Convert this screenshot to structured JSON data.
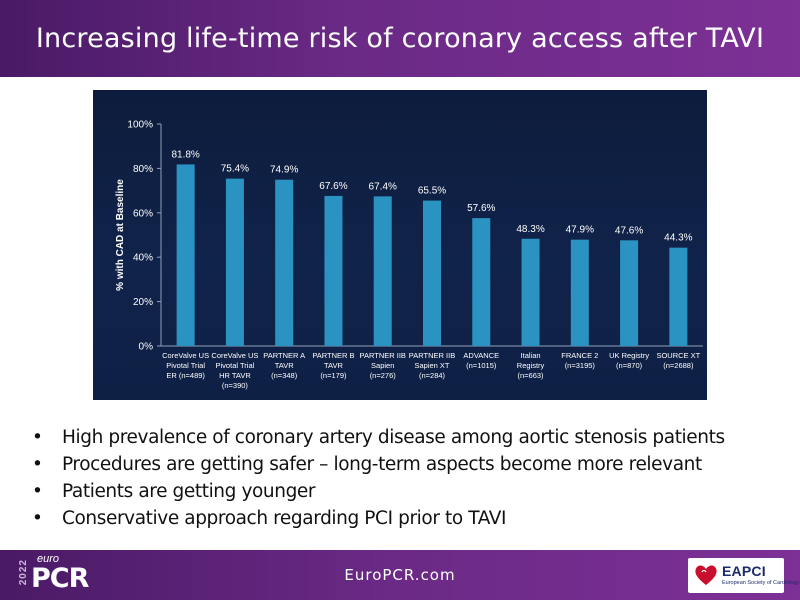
{
  "slide": {
    "title": "Increasing life-time risk of coronary access after TAVI"
  },
  "chart_data": {
    "type": "bar",
    "ylabel": "% with CAD at Baseline",
    "xlabel": "",
    "ylim": [
      0,
      100
    ],
    "yticks": [
      "0%",
      "20%",
      "40%",
      "60%",
      "80%",
      "100%"
    ],
    "categories": [
      [
        "CoreValve US",
        "Pivotal Trial",
        "ER (n=489)"
      ],
      [
        "CoreValve US",
        "Pivotal Trial",
        "HR TAVR",
        "(n=390)"
      ],
      [
        "PARTNER A",
        "TAVR",
        "(n=348)"
      ],
      [
        "PARTNER B",
        "TAVR",
        "(n=179)"
      ],
      [
        "PARTNER IIB",
        "Sapien",
        "(n=276)"
      ],
      [
        "PARTNER IIB",
        "Sapien XT",
        "(n=284)"
      ],
      [
        "ADVANCE",
        "(n=1015)"
      ],
      [
        "Italian",
        "Registry",
        "(n=663)"
      ],
      [
        "FRANCE 2",
        "(n=3195)"
      ],
      [
        "UK Registry",
        "(n=870)"
      ],
      [
        "SOURCE XT",
        "(n=2688)"
      ]
    ],
    "values": [
      81.8,
      75.4,
      74.9,
      67.6,
      67.4,
      65.5,
      57.6,
      48.3,
      47.9,
      47.6,
      44.3
    ],
    "value_labels": [
      "81.8%",
      "75.4%",
      "74.9%",
      "67.6%",
      "67.4%",
      "65.5%",
      "57.6%",
      "48.3%",
      "47.9%",
      "47.6%",
      "44.3%"
    ],
    "bar_color": "#2b93c2",
    "grid": false
  },
  "bullets": [
    "High prevalence of coronary artery disease among aortic stenosis patients",
    "Procedures are getting safer – long-term aspects become more relevant",
    "Patients are getting younger",
    "Conservative approach regarding PCI prior to TAVI"
  ],
  "footer": {
    "url": "EuroPCR.com",
    "logo_year": "2022",
    "logo_small": "euro",
    "logo_big": "PCR",
    "eapci_name": "EAPCI",
    "eapci_sub": "European Society of Cardiology"
  },
  "colors": {
    "header": "#6b2a86",
    "chart_background": "#0f2045",
    "bar": "#2b93c2"
  }
}
